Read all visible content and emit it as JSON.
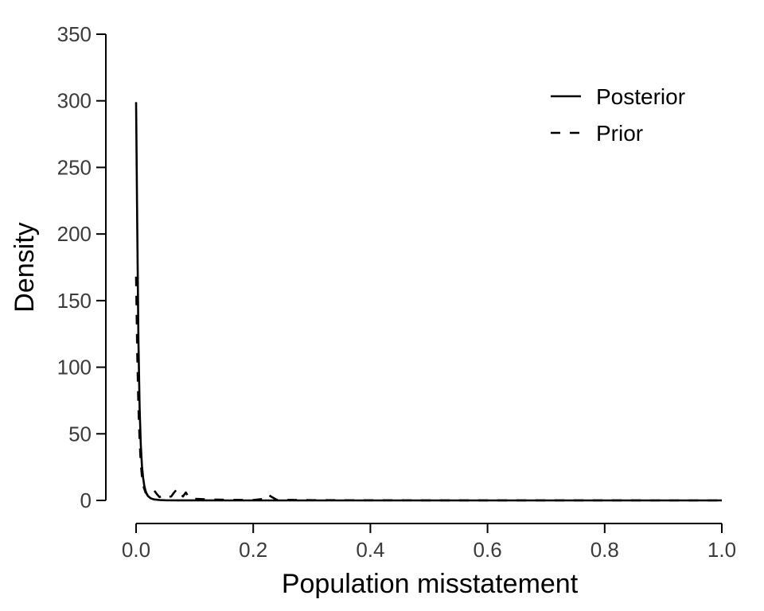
{
  "chart_data": {
    "type": "line",
    "title": "",
    "xlabel": "Population misstatement",
    "ylabel": "Density",
    "xlim": [
      0,
      1
    ],
    "ylim": [
      0,
      350
    ],
    "x_ticks": [
      0,
      0.2,
      0.4,
      0.6,
      0.8,
      1
    ],
    "x_tick_labels": [
      "0.0",
      "0.2",
      "0.4",
      "0.6",
      "0.8",
      "1.0"
    ],
    "y_ticks": [
      0,
      50,
      100,
      150,
      200,
      250,
      300,
      350
    ],
    "y_tick_labels": [
      "0",
      "50",
      "100",
      "150",
      "200",
      "250",
      "300",
      "350"
    ],
    "grid": false,
    "legend_position": "top-right",
    "series": [
      {
        "name": "Posterior",
        "line_style": "solid",
        "color": "#000000",
        "x": [
          0,
          0.002,
          0.004,
          0.006,
          0.008,
          0.01,
          0.012,
          0.014,
          0.016,
          0.018,
          0.02,
          0.025,
          0.03,
          0.04,
          0.05,
          0.07,
          0.1,
          0.15,
          0.2,
          0.3,
          0.5,
          0.7,
          1.0
        ],
        "y": [
          299,
          205,
          120,
          70,
          42,
          26,
          17,
          11,
          7.5,
          5,
          3.4,
          1.6,
          0.8,
          0.3,
          0.1,
          0.03,
          0.01,
          0,
          0,
          0,
          0,
          0,
          0
        ]
      },
      {
        "name": "Prior",
        "line_style": "dashed",
        "color": "#000000",
        "x": [
          0,
          0.002,
          0.004,
          0.006,
          0.008,
          0.01,
          0.013,
          0.016,
          0.02,
          0.025,
          0.03,
          0.035,
          0.04,
          0.045,
          0.05,
          0.055,
          0.06,
          0.065,
          0.07,
          0.075,
          0.08,
          0.085,
          0.09,
          0.1,
          0.12,
          0.15,
          0.2,
          0.215,
          0.22,
          0.225,
          0.23,
          0.24,
          0.3,
          0.5,
          0.7,
          1.0
        ],
        "y": [
          168,
          110,
          70,
          45,
          28,
          18,
          10,
          6,
          4,
          6.5,
          8,
          5,
          2.5,
          3.5,
          4,
          2.5,
          3,
          6,
          8.5,
          5,
          3,
          6,
          2,
          1.2,
          0.8,
          0.5,
          0.3,
          1,
          3.5,
          4.5,
          3,
          0.5,
          0.2,
          0.05,
          0.02,
          0
        ]
      }
    ]
  }
}
